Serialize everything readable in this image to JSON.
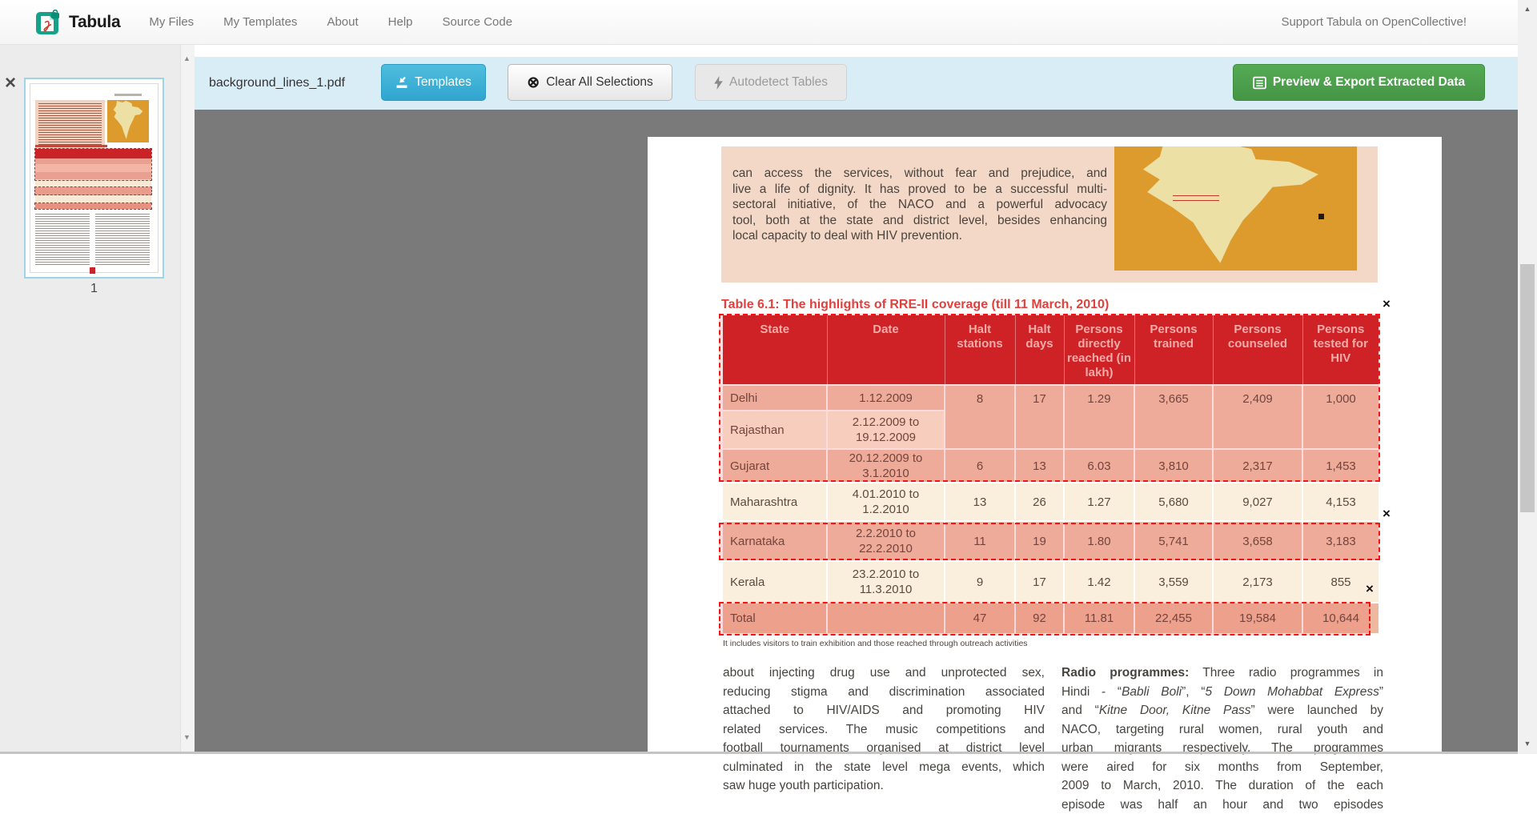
{
  "navbar": {
    "brand": "Tabula",
    "links": [
      "My Files",
      "My Templates",
      "About",
      "Help",
      "Source Code"
    ],
    "support_text": "Support Tabula on OpenCollective!"
  },
  "toolbar": {
    "filename": "background_lines_1.pdf",
    "templates_label": "Templates",
    "clear_all_label": "Clear All Selections",
    "autodetect_label": "Autodetect Tables",
    "export_label": "Preview & Export Extracted Data"
  },
  "sidebar": {
    "page_label": "1"
  },
  "icons": {
    "close": "×",
    "selection_close": "×",
    "clear_circle_x": "⊗",
    "scroll_up": "▲",
    "scroll_down": "▼"
  },
  "colors": {
    "toolbar_blue": "#d9edf7",
    "button_blue": "#30a5cf",
    "button_green": "#459545",
    "selection_red": "#f41414",
    "table_header_red": "#cb2127",
    "table_title_red": "#e2403d",
    "page_grey": "#7a7a7a"
  },
  "pdf": {
    "intro_lines": [
      "can access the services, without fear and prejudice, and",
      "live a life of dignity. It has proved to be a successful multi-",
      "sectoral initiative, of the NACO and a powerful advocacy",
      "tool, both at the state and district level, besides enhancing",
      "local capacity to deal with HIV prevention."
    ],
    "table_title": "Table 6.1: The highlights of RRE-II coverage (till 11 March, 2010)",
    "table": {
      "headers": [
        "State",
        "Date",
        "Halt stations",
        "Halt days",
        "Persons directly reached (in lakh)",
        "Persons trained",
        "Persons counseled",
        "Persons tested for HIV"
      ],
      "rows": [
        {
          "state": "Delhi",
          "date": "1.12.2009",
          "values": [
            "8",
            "17",
            "1.29",
            "3,665",
            "2,409",
            "1,000"
          ],
          "tone": "salmon",
          "merge_values_down": true
        },
        {
          "state": "Rajasthan",
          "date": "2.12.2009 to 19.12.2009",
          "values": null,
          "tone": "cream"
        },
        {
          "state": "Gujarat",
          "date": "20.12.2009 to 3.1.2010",
          "values": [
            "6",
            "13",
            "6.03",
            "3,810",
            "2,317",
            "1,453"
          ],
          "tone": "salmon"
        },
        {
          "state": "Maharashtra",
          "date": "4.01.2010 to 1.2.2010",
          "values": [
            "13",
            "26",
            "1.27",
            "5,680",
            "9,027",
            "4,153"
          ],
          "tone": "cream"
        },
        {
          "state": "Karnataka",
          "date": "2.2.2010 to 22.2.2010",
          "values": [
            "11",
            "19",
            "1.80",
            "5,741",
            "3,658",
            "3,183"
          ],
          "tone": "salmon"
        },
        {
          "state": "Kerala",
          "date": "23.2.2010 to 11.3.2010",
          "values": [
            "9",
            "17",
            "1.42",
            "3,559",
            "2,173",
            "855"
          ],
          "tone": "cream"
        },
        {
          "state": "Total",
          "date": "",
          "values": [
            "47",
            "92",
            "11.81",
            "22,455",
            "19,584",
            "10,644"
          ],
          "tone": "total"
        }
      ]
    },
    "footnote": "It includes visitors to train exhibition and those reached through outreach activities",
    "columns": {
      "left": [
        "about injecting drug use and unprotected sex,",
        "reducing stigma and discrimination associated",
        "attached to HIV/AIDS and promoting HIV",
        "related services. The music competitions and",
        "football tournaments organised at district level",
        "culminated in the state level mega events, which",
        "saw huge youth participation."
      ],
      "right": [
        [
          {
            "t": "Radio programmes:",
            "b": 1
          },
          {
            "t": " Three radio programmes in"
          }
        ],
        [
          {
            "t": "Hindi - “"
          },
          {
            "t": "Babli Boli",
            "i": 1
          },
          {
            "t": "”, “"
          },
          {
            "t": "5 Down Mohabbat Express",
            "i": 1
          },
          {
            "t": "”"
          }
        ],
        [
          {
            "t": "and “"
          },
          {
            "t": "Kitne Door, Kitne Pass",
            "i": 1
          },
          {
            "t": "” were launched by"
          }
        ],
        [
          {
            "t": "NACO, targeting rural women, rural youth and"
          }
        ],
        [
          {
            "t": "urban migrants respectively. The programmes"
          }
        ],
        [
          {
            "t": "were aired for six months from September,"
          }
        ],
        [
          {
            "t": "2009 to March, 2010. The duration of the each"
          }
        ],
        [
          {
            "t": "episode was half an hour and two episodes"
          }
        ]
      ]
    }
  }
}
